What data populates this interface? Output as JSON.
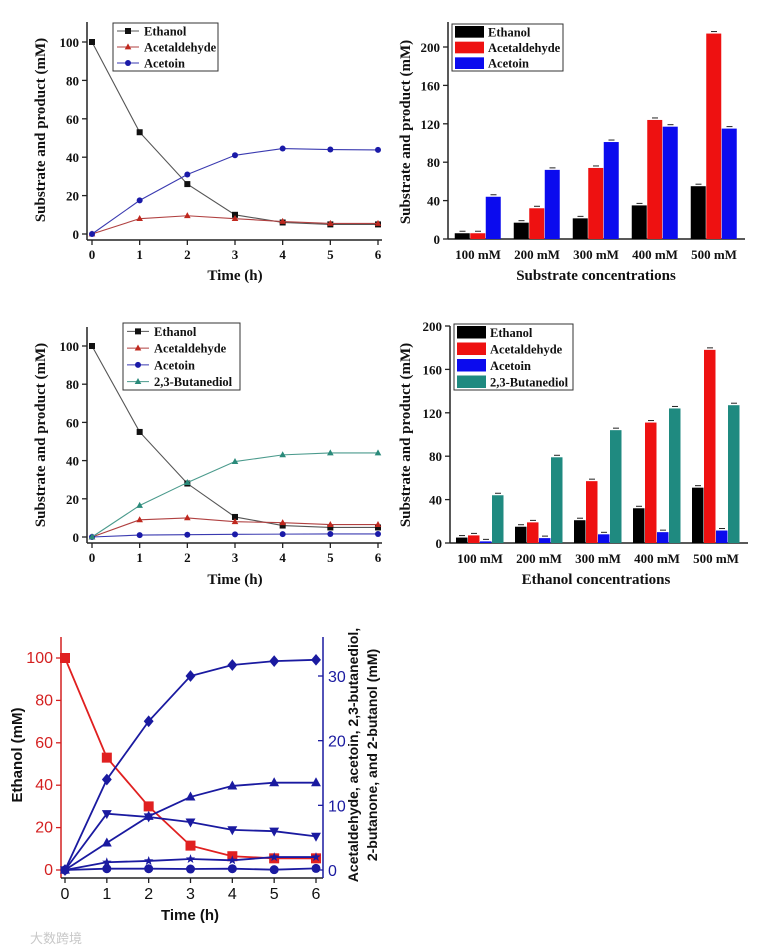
{
  "chart_data": [
    {
      "id": "ethanol-time-course-1",
      "type": "line",
      "xlabel": "Time (h)",
      "ylabel": "Substrate and product (mM)",
      "x": [
        0,
        1,
        2,
        3,
        4,
        5,
        6
      ],
      "xticks": [
        "0",
        "1",
        "2",
        "3",
        "4",
        "5",
        "6"
      ],
      "yticks": [
        "0",
        "20",
        "40",
        "60",
        "80",
        "100"
      ],
      "ylim": [
        0,
        110
      ],
      "legend": "top-left",
      "series": [
        {
          "name": "Ethanol",
          "color": "#111111",
          "line": "#555555",
          "marker": "square",
          "values": [
            100,
            53,
            26,
            10,
            6,
            5,
            5
          ]
        },
        {
          "name": "Acetaldehyde",
          "color": "#c0281e",
          "line": "#b04040",
          "marker": "triangle",
          "values": [
            0,
            8,
            9.5,
            8,
            6.5,
            5.5,
            5.5
          ]
        },
        {
          "name": "Acetoin",
          "color": "#1a1aa8",
          "line": "#3a3ab0",
          "marker": "circle",
          "values": [
            0,
            17.5,
            31,
            41,
            44.5,
            44,
            43.8
          ]
        }
      ]
    },
    {
      "id": "substrate-concentration-bars",
      "type": "bar",
      "xlabel": "Substrate concentrations",
      "ylabel": "Substrate and product (mM)",
      "categories": [
        "100 mM",
        "200 mM",
        "300 mM",
        "400 mM",
        "500 mM"
      ],
      "yticks": [
        "0",
        "40",
        "80",
        "120",
        "160",
        "200"
      ],
      "ylim": [
        0,
        225
      ],
      "legend": "top-left",
      "series": [
        {
          "name": "Ethanol",
          "color": "#000000",
          "values": [
            6,
            17,
            21.5,
            35,
            55
          ]
        },
        {
          "name": "Acetaldehyde",
          "color": "#ee1111",
          "values": [
            6,
            32,
            74,
            124,
            214
          ]
        },
        {
          "name": "Acetoin",
          "color": "#0b0bee",
          "values": [
            44,
            72,
            101,
            117,
            115
          ]
        }
      ]
    },
    {
      "id": "ethanol-time-course-2",
      "type": "line",
      "xlabel": "Time (h)",
      "ylabel": "Substrate and product (mM)",
      "x": [
        0,
        1,
        2,
        3,
        4,
        5,
        6
      ],
      "xticks": [
        "0",
        "1",
        "2",
        "3",
        "4",
        "5",
        "6"
      ],
      "yticks": [
        "0",
        "20",
        "40",
        "60",
        "80",
        "100"
      ],
      "ylim": [
        0,
        110
      ],
      "legend": "top-left",
      "series": [
        {
          "name": "Ethanol",
          "color": "#111111",
          "line": "#555555",
          "marker": "square",
          "values": [
            100,
            55,
            28,
            10.5,
            6,
            5,
            5
          ]
        },
        {
          "name": "Acetaldehyde",
          "color": "#c0281e",
          "line": "#b04040",
          "marker": "triangle",
          "values": [
            0,
            9,
            10,
            8,
            7.5,
            6.5,
            6.5
          ]
        },
        {
          "name": "Acetoin",
          "color": "#1a1aa8",
          "line": "#3a3ab0",
          "marker": "circle",
          "values": [
            0,
            1,
            1.2,
            1.4,
            1.5,
            1.6,
            1.6
          ]
        },
        {
          "name": "2,3-Butanediol",
          "color": "#2a8a7a",
          "line": "#4a9a8c",
          "marker": "triangle",
          "values": [
            0,
            16.5,
            28.5,
            39.5,
            43,
            44,
            44
          ]
        }
      ]
    },
    {
      "id": "ethanol-concentration-bars",
      "type": "bar",
      "xlabel": "Ethanol concentrations",
      "ylabel": "Substrate and product (mM)",
      "categories": [
        "100 mM",
        "200 mM",
        "300 mM",
        "400 mM",
        "500 mM"
      ],
      "yticks": [
        "0",
        "40",
        "80",
        "120",
        "160",
        "200"
      ],
      "ylim": [
        0,
        200
      ],
      "legend": "top-left",
      "series": [
        {
          "name": "Ethanol",
          "color": "#000000",
          "values": [
            5,
            15,
            21,
            32,
            51
          ]
        },
        {
          "name": "Acetaldehyde",
          "color": "#ee1111",
          "values": [
            7,
            19,
            57,
            111,
            178
          ]
        },
        {
          "name": "Acetoin",
          "color": "#0b0bee",
          "values": [
            1.5,
            4.5,
            8,
            10,
            11.5
          ]
        },
        {
          "name": "2,3-Butanediol",
          "color": "#1f8a80",
          "values": [
            44,
            79,
            104,
            124,
            127
          ]
        }
      ]
    },
    {
      "id": "dual-axis-time-course",
      "type": "line",
      "xlabel": "Time (h)",
      "ylabel": "Ethanol (mM)",
      "ylabel_right": [
        "Acetaldehyde, acetoin, 2,3-butanediol,",
        "2-butanone, and 2-butanol (mM)"
      ],
      "x": [
        0,
        1,
        2,
        3,
        4,
        5,
        6
      ],
      "xticks": [
        "0",
        "1",
        "2",
        "3",
        "4",
        "5",
        "6"
      ],
      "yticks": [
        "0",
        "20",
        "40",
        "60",
        "80",
        "100"
      ],
      "yticks_right": [
        "0",
        "10",
        "20",
        "30"
      ],
      "ylim": [
        0,
        110
      ],
      "ylim_right": [
        0,
        34
      ],
      "left_axis_color": "#d42020",
      "right_axis_color": "#1a1aa0",
      "series": [
        {
          "axis": "left",
          "color": "#e02020",
          "marker": "square",
          "values": [
            100,
            53,
            30,
            11.5,
            6.5,
            5.5,
            5.5
          ]
        },
        {
          "axis": "right",
          "color": "#1a1aa0",
          "marker": "diamond",
          "values": [
            0,
            14,
            23,
            30,
            31.7,
            32.3,
            32.5
          ]
        },
        {
          "axis": "right",
          "color": "#1a1aa0",
          "marker": "triangle",
          "values": [
            0,
            4.2,
            8.3,
            11.3,
            13,
            13.5,
            13.5
          ]
        },
        {
          "axis": "right",
          "color": "#1a1aa0",
          "marker": "triangle-down",
          "values": [
            0,
            8.7,
            8.2,
            7.4,
            6.2,
            6,
            5.2
          ]
        },
        {
          "axis": "right",
          "color": "#1a1aa0",
          "marker": "star",
          "values": [
            0,
            1.2,
            1.4,
            1.7,
            1.5,
            2,
            2
          ]
        },
        {
          "axis": "right",
          "color": "#1a1aa0",
          "marker": "circle",
          "values": [
            0,
            0.2,
            0.2,
            0.15,
            0.2,
            0.05,
            0.25
          ]
        }
      ]
    }
  ],
  "watermark": "大数跨境"
}
